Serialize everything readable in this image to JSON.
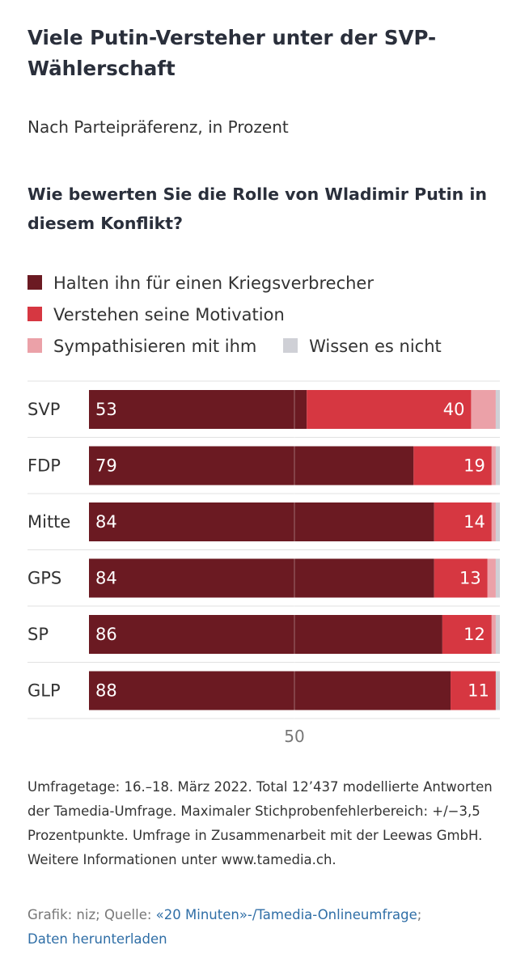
{
  "header": {
    "title": "Viele Putin-Versteher unter der SVP-Wählerschaft",
    "subtitle": "Nach Parteipräferenz, in Prozent",
    "question": "Wie bewerten Sie die Rolle von Wladimir Putin in diesem Konflikt?"
  },
  "legend": [
    {
      "label": "Halten ihn für einen Kriegsverbrecher",
      "color": "#6b1a22"
    },
    {
      "label": "Verstehen seine Motivation",
      "color": "#d63741"
    },
    {
      "label": "Sympathisieren mit ihm",
      "color": "#eba1a8"
    },
    {
      "label": "Wissen es nicht",
      "color": "#cfd0d6"
    }
  ],
  "chart_data": {
    "type": "bar",
    "orientation": "horizontal",
    "stacked": true,
    "title": "Viele Putin-Versteher unter der SVP-Wählerschaft",
    "subtitle": "Nach Parteipräferenz, in Prozent",
    "xlim": [
      0,
      100
    ],
    "xticks": [
      50
    ],
    "categories": [
      "SVP",
      "FDP",
      "Mitte",
      "GPS",
      "SP",
      "GLP"
    ],
    "series": [
      {
        "name": "Halten ihn für einen Kriegsverbrecher",
        "color": "#6b1a22",
        "values": [
          53,
          79,
          84,
          84,
          86,
          88
        ],
        "labeled": [
          true,
          true,
          true,
          true,
          true,
          true
        ]
      },
      {
        "name": "Verstehen seine Motivation",
        "color": "#d63741",
        "values": [
          40,
          19,
          14,
          13,
          12,
          11
        ],
        "labeled": [
          true,
          true,
          true,
          true,
          true,
          true
        ]
      },
      {
        "name": "Sympathisieren mit ihm",
        "color": "#eba1a8",
        "values": [
          6,
          1,
          1,
          2,
          1,
          0
        ],
        "labeled": [
          false,
          false,
          false,
          false,
          false,
          false
        ]
      },
      {
        "name": "Wissen es nicht",
        "color": "#cfd0d6",
        "values": [
          1,
          1,
          1,
          1,
          1,
          1
        ],
        "labeled": [
          false,
          false,
          false,
          false,
          false,
          false
        ]
      }
    ]
  },
  "footer": {
    "note": "Umfragetage: 16.–18. März 2022. Total 12’437 modellierte Antworten der Tamedia-Umfrage. Maximaler Stichprobenfehlerbereich: +/−3,5 Prozentpunkte. Umfrage in Zusammenarbeit mit der Leewas GmbH. Weitere Informationen unter www.tamedia.ch.",
    "credit_prefix": "Grafik: niz; Quelle: ",
    "source_link": "«20 Minuten»-/Tamedia-Onlineumfrage",
    "separator": ";",
    "download_link": "Daten herunterladen"
  }
}
